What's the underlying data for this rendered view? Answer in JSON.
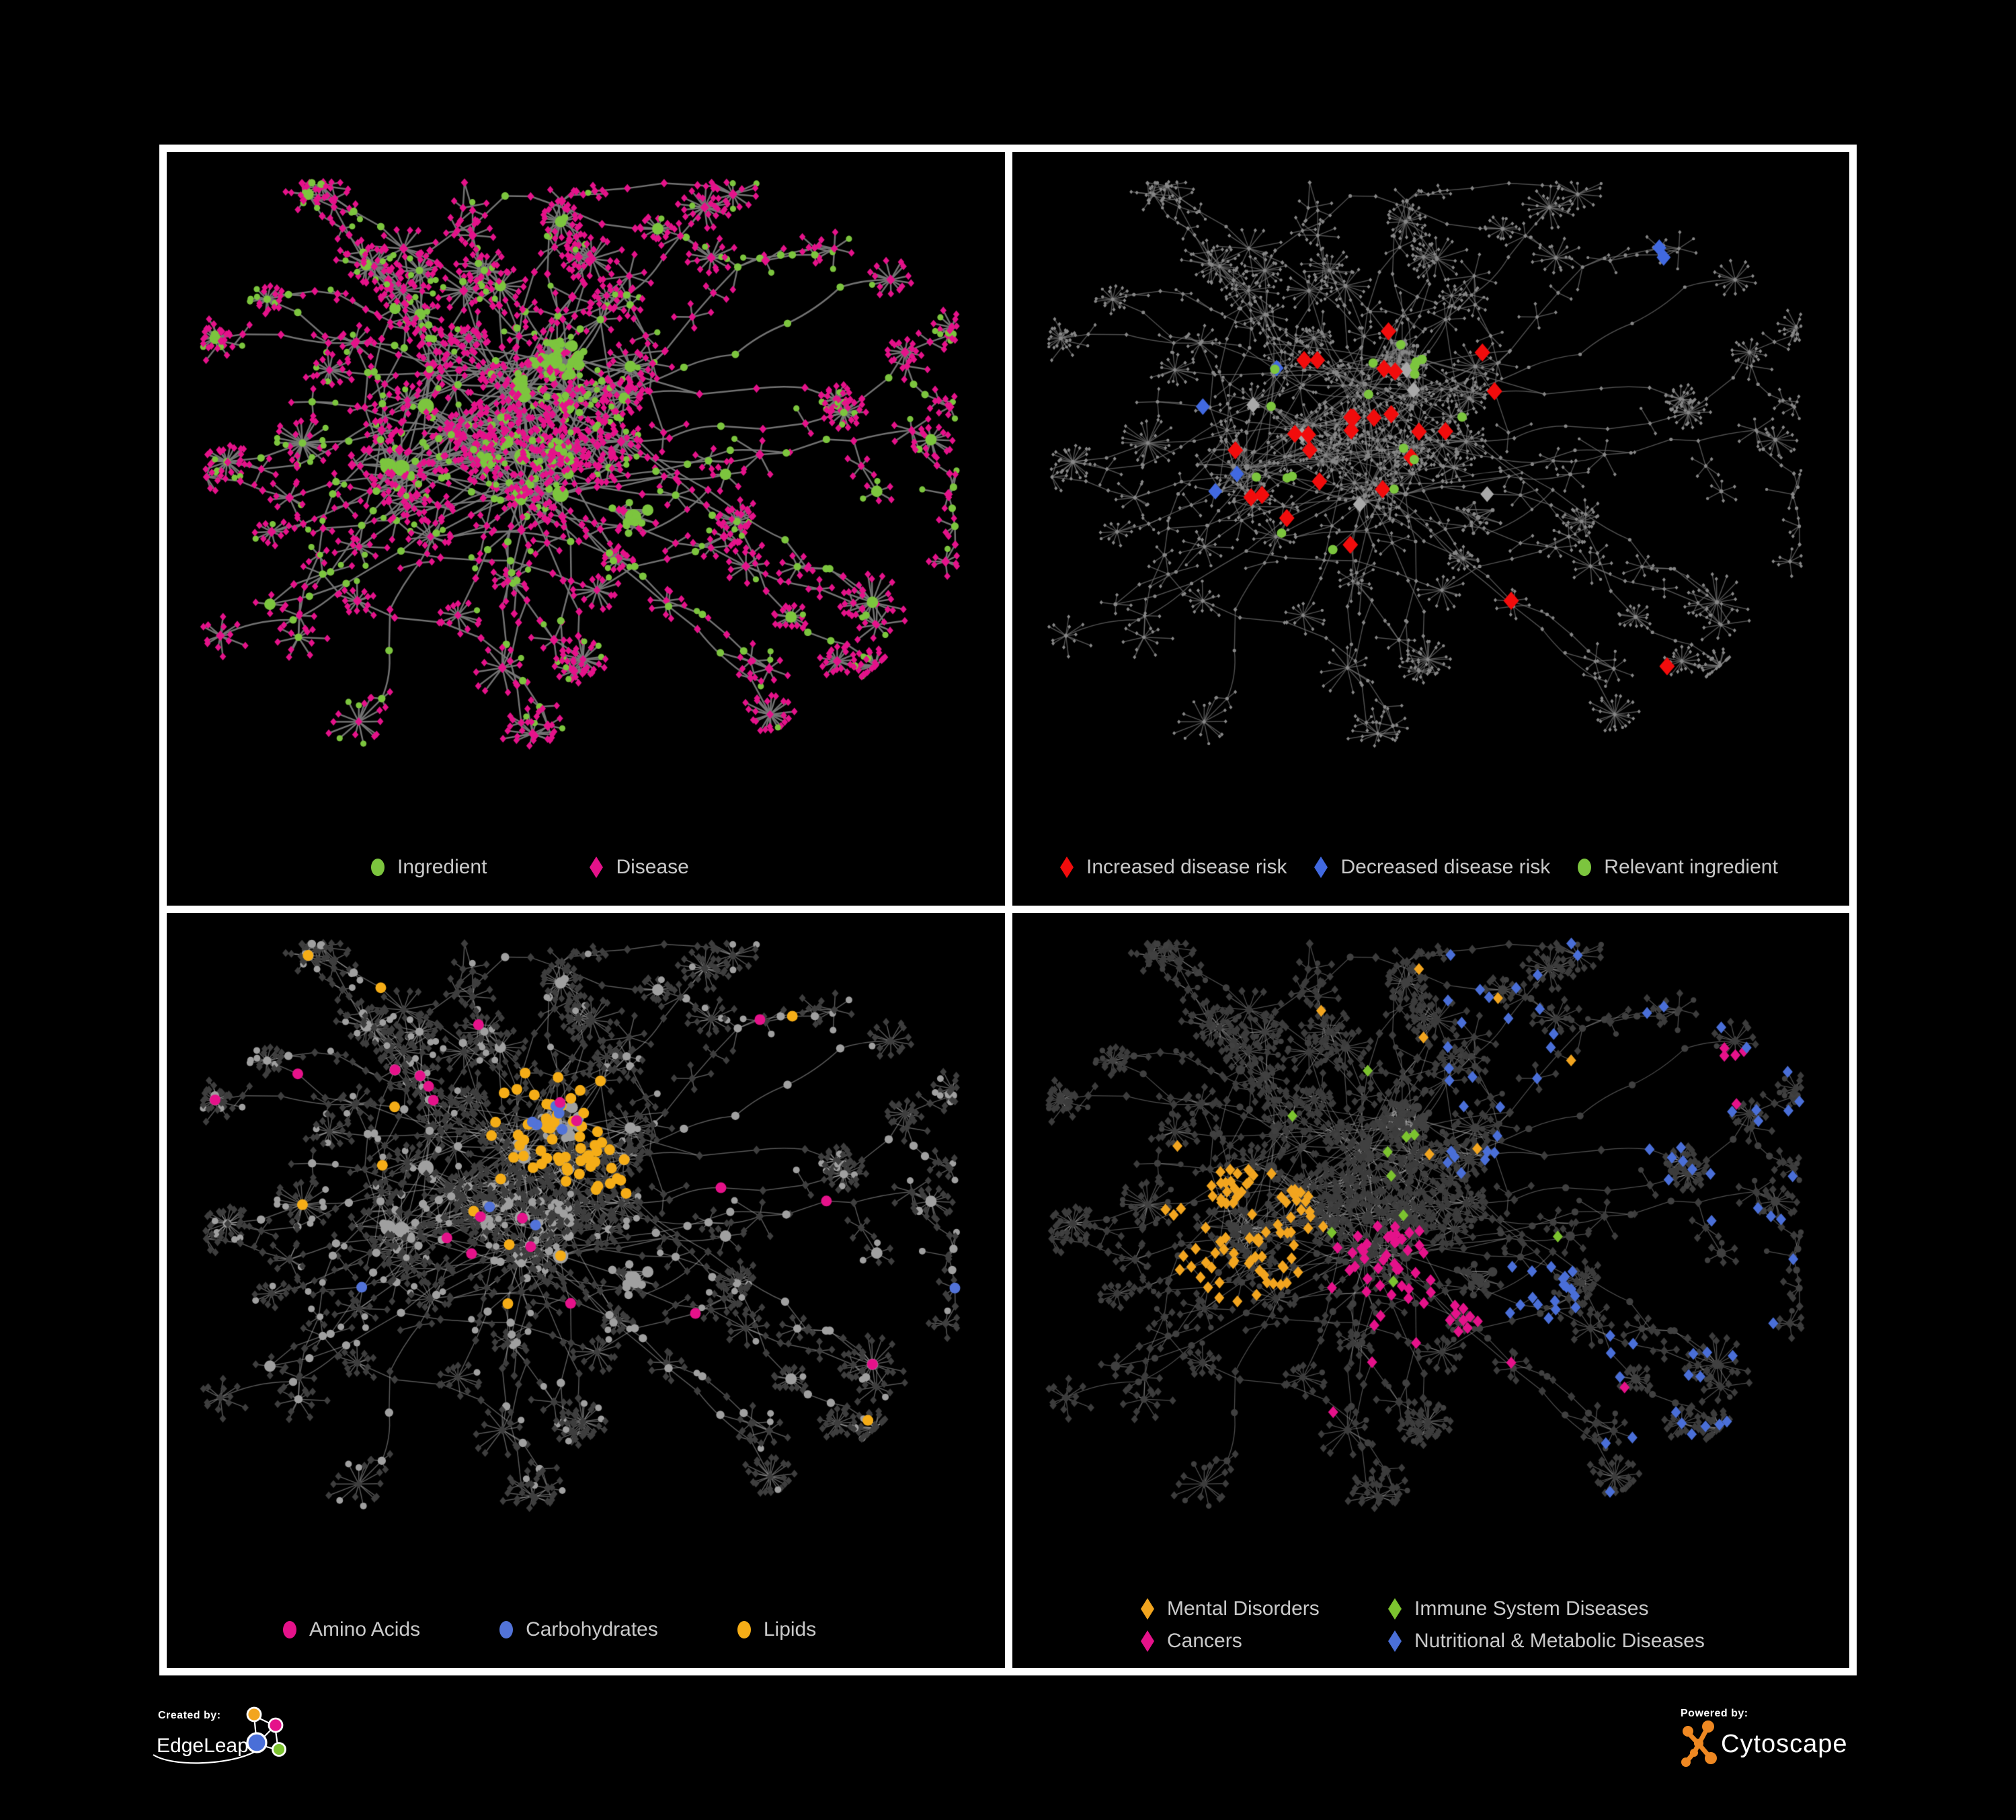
{
  "panels": [
    {
      "name": "network-ingredient-disease",
      "legend": [
        {
          "label": "Ingredient",
          "color": "#7cc53e",
          "shape": "circle"
        },
        {
          "label": "Disease",
          "color": "#e5128a",
          "shape": "diamond"
        }
      ]
    },
    {
      "name": "network-disease-risk",
      "legend": [
        {
          "label": "Increased disease risk",
          "color": "#f20c0c",
          "shape": "diamond"
        },
        {
          "label": "Decreased disease risk",
          "color": "#4169e0",
          "shape": "diamond"
        },
        {
          "label": "Relevant ingredient",
          "color": "#7cc53e",
          "shape": "circle"
        }
      ]
    },
    {
      "name": "network-nutrient-classes",
      "legend": [
        {
          "label": "Amino Acids",
          "color": "#e5128a",
          "shape": "circle"
        },
        {
          "label": "Carbohydrates",
          "color": "#5273d8",
          "shape": "circle"
        },
        {
          "label": "Lipids",
          "color": "#f5ad17",
          "shape": "circle"
        }
      ]
    },
    {
      "name": "network-disease-categories",
      "legend": [
        {
          "label": "Mental Disorders",
          "color": "#f2a51f",
          "shape": "diamond"
        },
        {
          "label": "Immune System Diseases",
          "color": "#7cc32f",
          "shape": "diamond"
        },
        {
          "label": "Cancers",
          "color": "#e5128a",
          "shape": "diamond"
        },
        {
          "label": "Nutritional & Metabolic Diseases",
          "color": "#4a6fd8",
          "shape": "diamond"
        }
      ]
    }
  ],
  "footer": {
    "created_by": "Created by:",
    "creator": "EdgeLeap",
    "powered_by": "Powered by:",
    "engine": "Cytoscape",
    "edgeleap_colors": {
      "blue": "#4a6fd8",
      "orange": "#f2a51f",
      "magenta": "#e5128a",
      "green": "#7cc32f"
    },
    "cytoscape_orange": "#ee8822"
  },
  "graph": {
    "seed": 20240601,
    "style": {
      "p1": {
        "edge": "rgba(120,120,120,0.95)",
        "ew": 2.5,
        "disease": {
          "fill": "#e5128a",
          "sizes": [
            4.8,
            5.4,
            6.6,
            7.5
          ]
        },
        "ingredient": {
          "fill": "#7cc53e",
          "sizes": [
            4.6,
            5.6,
            8.5,
            12
          ]
        }
      },
      "p2": {
        "edge": "rgba(120,120,120,0.65)",
        "ew": 1.5,
        "disease": {
          "fill": "#878787",
          "sizes": [
            2.6,
            3,
            3.3,
            3.8
          ]
        },
        "ingredient": {
          "fill": "#878787",
          "sizes": [
            2.2,
            2.6,
            3,
            3.6
          ]
        }
      },
      "p3": {
        "edge": "rgba(175,175,175,0.5)",
        "ew": 1.5,
        "disease": {
          "fill": "#3e3e3e",
          "sizes": [
            5,
            5.5,
            6,
            6.5
          ]
        },
        "ingredient": {
          "fill": "#a0a0a0",
          "sizes": [
            5,
            6.2,
            8.5,
            11.5
          ]
        }
      },
      "p4": {
        "edge": "rgba(170,170,170,0.45)",
        "ew": 1.3,
        "disease": {
          "fill": "#3c3c3c",
          "sizes": [
            5.2,
            5.8,
            6.4,
            7
          ]
        },
        "ingredient": {
          "fill": "#404040",
          "sizes": [
            4.2,
            5.2,
            7,
            9
          ]
        }
      }
    },
    "overlays": {
      "p2": {
        "red": {
          "color": "#f20c0c",
          "count": 27
        },
        "blue": {
          "color": "#4169e0",
          "count": 6
        },
        "silver": {
          "color": "#a9a9a9",
          "count": 7
        },
        "green": {
          "color": "#7cc53e",
          "count": 18
        }
      },
      "p3": {
        "lipids": {
          "color": "#f5ad17",
          "count": 72
        },
        "carbs": {
          "color": "#5273d8",
          "count": 11
        },
        "amino": {
          "color": "#e5128a",
          "count": 20
        }
      },
      "p4": {
        "mental": {
          "color": "#f2a51f",
          "count": 93
        },
        "cancers": {
          "color": "#e5128a",
          "count": 61
        },
        "nutritional": {
          "color": "#4a6fd8",
          "count": 88
        },
        "immune": {
          "color": "#7cc32f",
          "count": 10
        }
      }
    }
  }
}
